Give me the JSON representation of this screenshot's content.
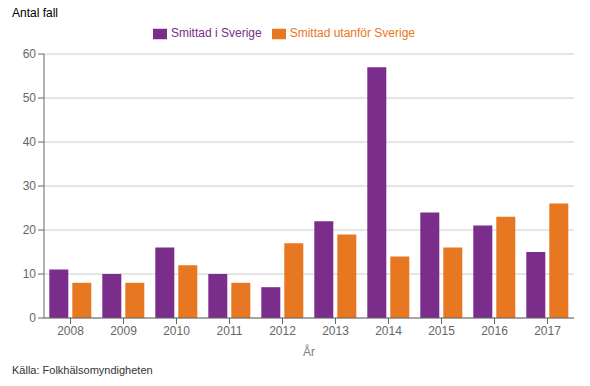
{
  "chart_data": {
    "type": "bar",
    "categories": [
      "2008",
      "2009",
      "2010",
      "2011",
      "2012",
      "2013",
      "2014",
      "2015",
      "2016",
      "2017"
    ],
    "series": [
      {
        "name": "Smittad i Sverige",
        "color": "#7B2D8B",
        "values": [
          11,
          10,
          16,
          10,
          7,
          22,
          57,
          24,
          21,
          15
        ]
      },
      {
        "name": "Smittad utanför Sverige",
        "color": "#E87722",
        "values": [
          8,
          8,
          12,
          8,
          17,
          19,
          14,
          16,
          23,
          26
        ]
      }
    ],
    "xlabel": "År",
    "ylabel": "Antal fall",
    "annotations": [
      "Källa: Folkhälsomyndigheten"
    ],
    "ylim": [
      0,
      60
    ],
    "yticks": [
      0,
      10,
      20,
      30,
      40,
      50,
      60
    ],
    "grid": true,
    "legend": "top"
  }
}
